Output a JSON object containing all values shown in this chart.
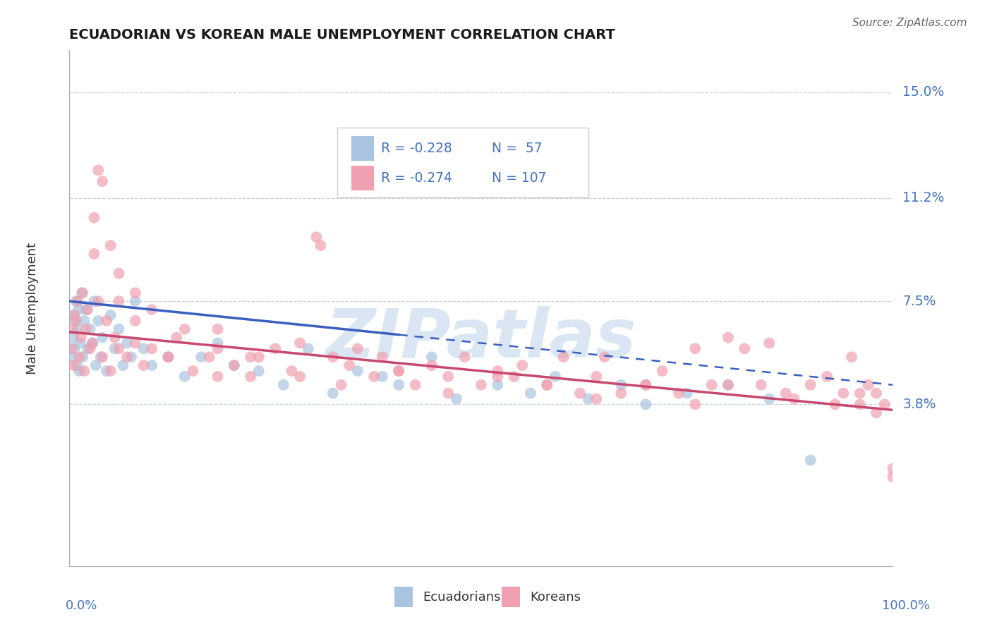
{
  "title": "ECUADORIAN VS KOREAN MALE UNEMPLOYMENT CORRELATION CHART",
  "source": "Source: ZipAtlas.com",
  "ylabel": "Male Unemployment",
  "color_blue": "#a8c4e0",
  "color_pink": "#f0a0b0",
  "color_blue_line": "#3a5fc0",
  "color_pink_line": "#c84870",
  "color_axis_label": "#4472c4",
  "watermark_text": "ZIPatlas",
  "watermark_color": "#dae6f3",
  "legend_r1": "R = -0.228",
  "legend_n1": "N =  57",
  "legend_r2": "R = -0.274",
  "legend_n2": "N = 107",
  "ytick_values": [
    3.8,
    7.5,
    11.2,
    15.0
  ],
  "ytick_labels": [
    "3.8%",
    "7.5%",
    "11.2%",
    "15.0%"
  ],
  "xlim": [
    0,
    100
  ],
  "ylim": [
    -2.0,
    16.5
  ],
  "xmin_label": "0.0%",
  "xmax_label": "100.0%",
  "legend1_label": "Ecuadorians",
  "legend2_label": "Koreans",
  "ecu_x": [
    0.3,
    0.4,
    0.5,
    0.6,
    0.7,
    0.8,
    0.9,
    1.0,
    1.1,
    1.2,
    1.3,
    1.5,
    1.6,
    1.8,
    2.0,
    2.2,
    2.5,
    2.8,
    3.0,
    3.2,
    3.5,
    3.8,
    4.0,
    4.5,
    5.0,
    5.5,
    6.0,
    6.5,
    7.0,
    7.5,
    8.0,
    9.0,
    10.0,
    12.0,
    14.0,
    16.0,
    18.0,
    20.0,
    23.0,
    26.0,
    29.0,
    32.0,
    35.0,
    38.0,
    40.0,
    44.0,
    47.0,
    52.0,
    56.0,
    59.0,
    63.0,
    67.0,
    70.0,
    75.0,
    80.0,
    85.0,
    90.0
  ],
  "ecu_y": [
    5.5,
    6.2,
    7.0,
    5.8,
    6.8,
    7.5,
    5.2,
    6.5,
    7.2,
    5.0,
    6.0,
    7.8,
    5.5,
    6.8,
    7.2,
    5.8,
    6.5,
    6.0,
    7.5,
    5.2,
    6.8,
    5.5,
    6.2,
    5.0,
    7.0,
    5.8,
    6.5,
    5.2,
    6.0,
    5.5,
    7.5,
    5.8,
    5.2,
    5.5,
    4.8,
    5.5,
    6.0,
    5.2,
    5.0,
    4.5,
    5.8,
    4.2,
    5.0,
    4.8,
    4.5,
    5.5,
    4.0,
    4.5,
    4.2,
    4.8,
    4.0,
    4.5,
    3.8,
    4.2,
    4.5,
    4.0,
    1.8
  ],
  "kor_x": [
    0.3,
    0.4,
    0.5,
    0.6,
    0.8,
    1.0,
    1.2,
    1.4,
    1.6,
    1.8,
    2.0,
    2.2,
    2.5,
    2.8,
    3.0,
    3.5,
    4.0,
    4.5,
    5.0,
    5.5,
    6.0,
    7.0,
    8.0,
    9.0,
    10.0,
    12.0,
    13.0,
    15.0,
    17.0,
    18.0,
    20.0,
    22.0,
    23.0,
    25.0,
    27.0,
    28.0,
    30.0,
    30.5,
    32.0,
    34.0,
    35.0,
    37.0,
    38.0,
    40.0,
    42.0,
    44.0,
    46.0,
    48.0,
    50.0,
    52.0,
    54.0,
    55.0,
    58.0,
    60.0,
    62.0,
    64.0,
    65.0,
    67.0,
    70.0,
    72.0,
    74.0,
    76.0,
    78.0,
    80.0,
    82.0,
    84.0,
    85.0,
    87.0,
    90.0,
    92.0,
    94.0,
    95.0,
    96.0,
    97.0,
    98.0,
    99.0,
    100.0,
    6.0,
    8.0,
    10.0,
    14.0,
    18.0,
    22.0,
    28.0,
    33.0,
    40.0,
    46.0,
    52.0,
    58.0,
    64.0,
    70.0,
    76.0,
    80.0,
    88.0,
    93.0,
    96.0,
    98.0,
    100.0,
    3.0,
    3.5,
    4.0,
    5.0,
    6.0,
    8.0,
    12.0,
    18.0
  ],
  "kor_y": [
    5.8,
    6.5,
    5.2,
    7.0,
    6.8,
    7.5,
    5.5,
    6.2,
    7.8,
    5.0,
    6.5,
    7.2,
    5.8,
    6.0,
    9.2,
    7.5,
    5.5,
    6.8,
    5.0,
    6.2,
    5.8,
    5.5,
    6.0,
    5.2,
    5.8,
    5.5,
    6.2,
    5.0,
    5.5,
    6.5,
    5.2,
    4.8,
    5.5,
    5.8,
    5.0,
    6.0,
    9.8,
    9.5,
    5.5,
    5.2,
    5.8,
    4.8,
    5.5,
    5.0,
    4.5,
    5.2,
    4.8,
    5.5,
    4.5,
    5.0,
    4.8,
    5.2,
    4.5,
    5.5,
    4.2,
    4.8,
    5.5,
    4.2,
    4.5,
    5.0,
    4.2,
    5.8,
    4.5,
    6.2,
    5.8,
    4.5,
    6.0,
    4.2,
    4.5,
    4.8,
    4.2,
    5.5,
    3.8,
    4.5,
    4.2,
    3.8,
    1.5,
    7.5,
    6.8,
    7.2,
    6.5,
    5.8,
    5.5,
    4.8,
    4.5,
    5.0,
    4.2,
    4.8,
    4.5,
    4.0,
    4.5,
    3.8,
    4.5,
    4.0,
    3.8,
    4.2,
    3.5,
    1.2,
    10.5,
    12.2,
    11.8,
    9.5,
    8.5,
    7.8,
    5.5,
    4.8
  ]
}
